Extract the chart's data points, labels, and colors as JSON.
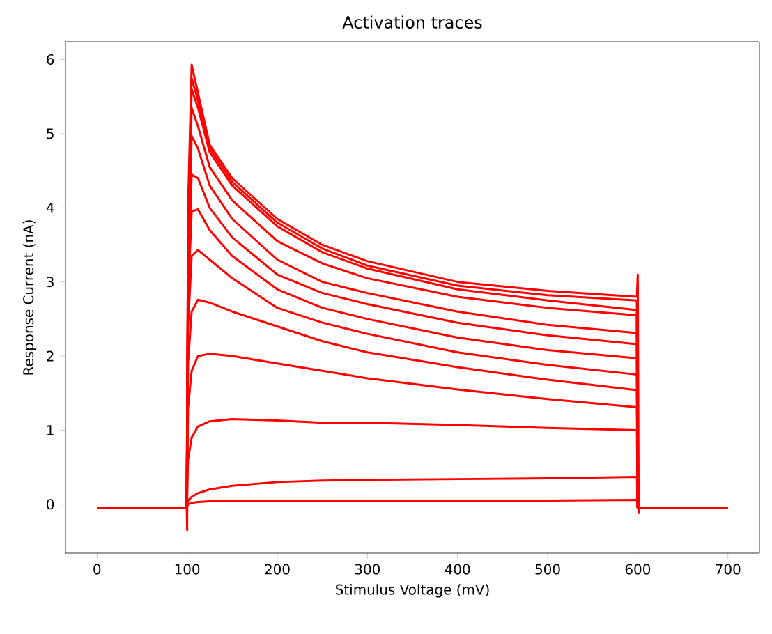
{
  "chart_data": {
    "type": "line",
    "title": "Activation traces",
    "xlabel": "Stimulus Voltage (mV)",
    "ylabel": "Response Current (nA)",
    "x": [
      0,
      99.5,
      101,
      105,
      112,
      125,
      150,
      200,
      250,
      300,
      400,
      500,
      599,
      600,
      700
    ],
    "xlim": [
      -35,
      735
    ],
    "ylim": [
      -0.66,
      6.24
    ],
    "xticks": [
      0,
      100,
      200,
      300,
      400,
      500,
      600,
      700
    ],
    "yticks": [
      0,
      1,
      2,
      3,
      4,
      5,
      6
    ],
    "series": [
      {
        "color": "#ff0000",
        "x": [
          0,
          99.5,
          100,
          101,
          105,
          112,
          125,
          150,
          200,
          250,
          300,
          400,
          500,
          599,
          600,
          601,
          602,
          700
        ],
        "values": [
          -0.05,
          -0.05,
          -0.35,
          4.0,
          5.93,
          5.55,
          4.85,
          4.4,
          3.85,
          3.5,
          3.28,
          3.0,
          2.88,
          2.8,
          3.1,
          -0.12,
          -0.05,
          -0.05
        ]
      },
      {
        "color": "#ff0000",
        "values": [
          -0.05,
          -0.05,
          3.8,
          5.75,
          5.45,
          4.8,
          4.35,
          3.8,
          3.45,
          3.22,
          2.95,
          2.82,
          2.75,
          -0.05,
          -0.05
        ]
      },
      {
        "color": "#ff0000",
        "values": [
          -0.05,
          -0.05,
          3.6,
          5.6,
          5.35,
          4.75,
          4.3,
          3.75,
          3.4,
          3.18,
          2.9,
          2.75,
          2.62,
          -0.05,
          -0.05
        ]
      },
      {
        "color": "#ff0000",
        "values": [
          -0.05,
          -0.05,
          3.4,
          5.35,
          5.1,
          4.55,
          4.1,
          3.55,
          3.25,
          3.05,
          2.8,
          2.65,
          2.55,
          -0.05,
          -0.05
        ]
      },
      {
        "color": "#ff0000",
        "values": [
          -0.05,
          -0.05,
          3.2,
          4.97,
          4.8,
          4.3,
          3.85,
          3.3,
          3.0,
          2.85,
          2.6,
          2.42,
          2.31,
          -0.05,
          -0.05
        ]
      },
      {
        "color": "#ff0000",
        "values": [
          -0.05,
          -0.05,
          3.0,
          4.45,
          4.4,
          4.0,
          3.6,
          3.1,
          2.85,
          2.7,
          2.45,
          2.28,
          2.16,
          -0.05,
          -0.05
        ]
      },
      {
        "color": "#ff0000",
        "values": [
          -0.05,
          -0.05,
          2.8,
          3.95,
          3.98,
          3.7,
          3.35,
          2.9,
          2.65,
          2.5,
          2.25,
          2.08,
          1.97,
          -0.05,
          -0.05
        ]
      },
      {
        "color": "#ff0000",
        "values": [
          -0.05,
          -0.05,
          2.4,
          3.35,
          3.43,
          3.3,
          3.05,
          2.65,
          2.45,
          2.3,
          2.05,
          1.88,
          1.75,
          -0.05,
          -0.05
        ]
      },
      {
        "color": "#ff0000",
        "values": [
          -0.05,
          -0.05,
          1.9,
          2.6,
          2.76,
          2.72,
          2.6,
          2.4,
          2.2,
          2.05,
          1.85,
          1.68,
          1.54,
          -0.05,
          -0.05
        ]
      },
      {
        "color": "#ff0000",
        "values": [
          -0.05,
          -0.05,
          1.3,
          1.8,
          2.0,
          2.03,
          2.0,
          1.9,
          1.8,
          1.7,
          1.55,
          1.42,
          1.31,
          -0.05,
          -0.05
        ]
      },
      {
        "color": "#ff0000",
        "values": [
          -0.05,
          -0.05,
          0.6,
          0.9,
          1.05,
          1.12,
          1.15,
          1.13,
          1.1,
          1.1,
          1.07,
          1.03,
          1.0,
          -0.05,
          -0.05
        ]
      },
      {
        "color": "#ff0000",
        "values": [
          -0.05,
          -0.05,
          0.05,
          0.1,
          0.15,
          0.2,
          0.25,
          0.3,
          0.32,
          0.33,
          0.34,
          0.35,
          0.37,
          -0.05,
          -0.05
        ]
      },
      {
        "color": "#ff0000",
        "values": [
          -0.05,
          -0.05,
          0.0,
          0.02,
          0.03,
          0.04,
          0.05,
          0.05,
          0.05,
          0.05,
          0.05,
          0.05,
          0.06,
          -0.05,
          -0.05
        ]
      }
    ]
  }
}
